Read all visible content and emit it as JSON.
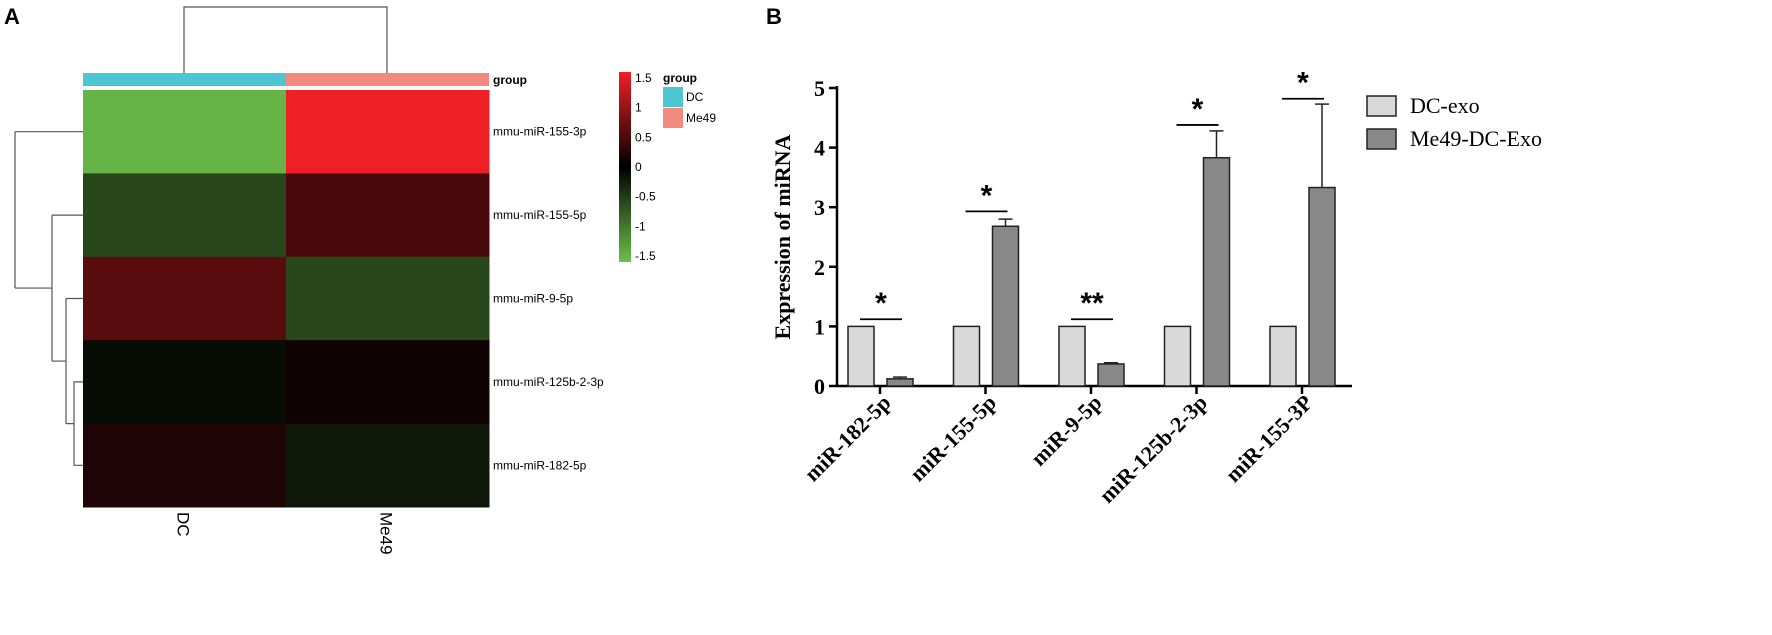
{
  "panels": {
    "a": "A",
    "b": "B"
  },
  "chart_data": [
    {
      "type": "heatmap",
      "columns": [
        "DC",
        "Me49"
      ],
      "rows": [
        "mmu-miR-155-3p",
        "mmu-miR-155-5p",
        "mmu-miR-9-5p",
        "mmu-miR-125b-2-3p",
        "mmu-miR-182-5p"
      ],
      "values": [
        [
          -1.5,
          1.6
        ],
        [
          -0.6,
          0.5
        ],
        [
          0.6,
          -0.6
        ],
        [
          -0.1,
          0.1
        ],
        [
          0.2,
          -0.2
        ]
      ],
      "annotation": {
        "title": "group",
        "entries": [
          {
            "name": "DC",
            "color": "#4dc6d4"
          },
          {
            "name": "Me49",
            "color": "#f28a80"
          }
        ]
      },
      "colorbar": {
        "ticks": [
          "1.5",
          "1",
          "0.5",
          "0",
          "-0.5",
          "-1",
          "-1.5"
        ],
        "range": [
          -1.6,
          1.6
        ],
        "low_color": "#6cc04a",
        "mid_color": "#000000",
        "high_color": "#ee2026"
      },
      "dendrogram": {
        "top": true,
        "left": true
      }
    },
    {
      "type": "bar",
      "categories": [
        "miR-182-5p",
        "miR-155-5p",
        "miR-9-5p",
        "miR-125b-2-3p",
        "miR-155-3P"
      ],
      "series": [
        {
          "name": "DC-exo",
          "values": [
            1,
            1,
            1,
            1,
            1
          ],
          "color": "#d9d9d9"
        },
        {
          "name": "Me49-DC-Exo",
          "values": [
            0.12,
            2.68,
            0.37,
            3.83,
            3.33
          ],
          "errors": [
            0.03,
            0.12,
            0.02,
            0.45,
            1.4
          ],
          "color": "#888888"
        }
      ],
      "significance": [
        "*",
        "*",
        "**",
        "*",
        "*"
      ],
      "significance_line_y": [
        1.12,
        2.93,
        1.12,
        4.38,
        4.82
      ],
      "ylabel": "Expression of miRNA",
      "xlabel": "",
      "ylim": [
        0,
        5
      ],
      "yticks": [
        "0",
        "1",
        "2",
        "3",
        "4",
        "5"
      ],
      "legend_position": "right"
    }
  ]
}
